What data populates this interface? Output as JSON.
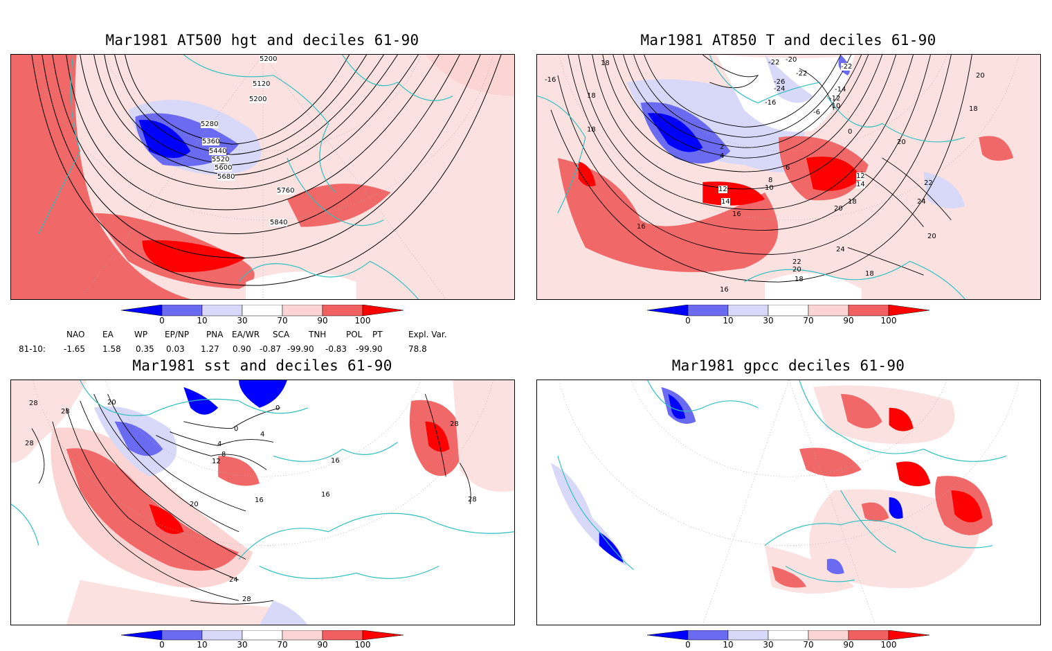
{
  "panels": [
    {
      "title": "Mar1981 AT500 hgt and deciles 61-90",
      "contour_labels": [
        "5200",
        "5120",
        "5200",
        "5280",
        "5360",
        "5440",
        "5520",
        "5600",
        "5680",
        "5760",
        "5840"
      ]
    },
    {
      "title": "Mar1981 AT850 T and deciles 61-90",
      "contour_labels": [
        "-22",
        "-20",
        "-22",
        "-22",
        "-26",
        "-24",
        "-14",
        "-12",
        "-10",
        "-16",
        "-6",
        "18",
        "18",
        "18",
        "16",
        "-16",
        "0",
        "2",
        "4",
        "6",
        "8",
        "10",
        "12",
        "14",
        "16",
        "12",
        "14",
        "18",
        "20",
        "20",
        "22",
        "24",
        "20",
        "22",
        "24",
        "20",
        "18",
        "18",
        "18",
        "16",
        "20"
      ]
    },
    {
      "title": "Mar1981 sst and deciles 61-90",
      "contour_labels": [
        "28",
        "28",
        "28",
        "20",
        "0",
        "4",
        "8",
        "12",
        "16",
        "20",
        "24",
        "28",
        "0",
        "4",
        "16",
        "28",
        "28",
        "16"
      ]
    },
    {
      "title": "Mar1981 gpcc deciles 61-90",
      "contour_labels": []
    }
  ],
  "colorbar": {
    "labels": [
      "0",
      "10",
      "30",
      "70",
      "90",
      "100"
    ],
    "colors": [
      "#0000ff",
      "#6b6bf2",
      "#d8d8f8",
      "#ffffff",
      "#fbd4d4",
      "#f06060",
      "#ff0000"
    ]
  },
  "indices": {
    "headers": [
      "NAO",
      "EA",
      "WP",
      "EP/NP",
      "PNA",
      "EA/WR",
      "SCA",
      "TNH",
      "POL",
      "PT",
      "Expl. Var."
    ],
    "row_label": "81-10:",
    "values": [
      "-1.65",
      "1.58",
      "0.35",
      "0.03",
      "1.27",
      "0.90",
      "-0.87",
      "-99.90",
      "-0.83",
      "-99.90",
      "78.8"
    ]
  }
}
